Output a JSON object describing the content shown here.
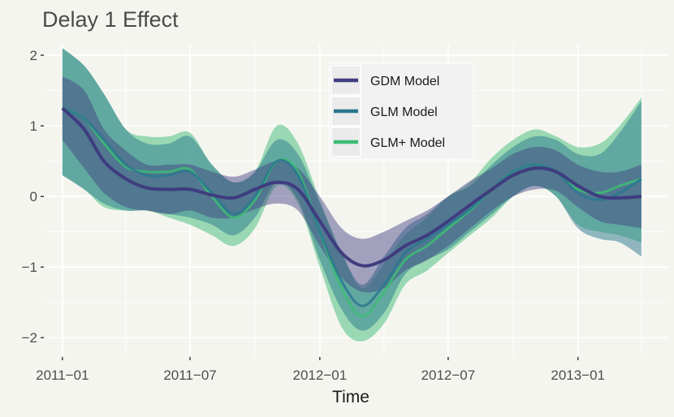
{
  "chart_data": {
    "type": "area",
    "title": "Delay 1 Effect",
    "xlabel": "Time",
    "ylabel": "",
    "x_ticks": [
      "2011-01",
      "2011-07",
      "2012-01",
      "2012-07",
      "2013-01"
    ],
    "y_ticks": [
      "2",
      "1",
      "0",
      "-1",
      "-2"
    ],
    "xlim": [
      "2010-12-08",
      "2013-05-08"
    ],
    "ylim": [
      -2.25,
      2.15
    ],
    "grid": true,
    "legend_position": "top-center",
    "x": [
      "2011-01-01",
      "2011-02-01",
      "2011-03-01",
      "2011-04-01",
      "2011-05-01",
      "2011-06-01",
      "2011-07-01",
      "2011-08-01",
      "2011-09-01",
      "2011-10-01",
      "2011-11-01",
      "2011-12-01",
      "2012-01-01",
      "2012-02-01",
      "2012-03-01",
      "2012-04-01",
      "2012-05-01",
      "2012-06-01",
      "2012-07-01",
      "2012-08-01",
      "2012-09-01",
      "2012-10-01",
      "2012-11-01",
      "2012-12-01",
      "2013-01-01",
      "2013-02-01",
      "2013-03-01",
      "2013-04-01"
    ],
    "series": [
      {
        "name": "GDM Model",
        "color": "#3f3c7f",
        "values": [
          1.25,
          0.95,
          0.5,
          0.25,
          0.12,
          0.1,
          0.1,
          0.02,
          -0.02,
          0.1,
          0.2,
          0.1,
          -0.35,
          -0.8,
          -0.98,
          -0.9,
          -0.7,
          -0.55,
          -0.35,
          -0.12,
          0.1,
          0.3,
          0.4,
          0.35,
          0.15,
          0.0,
          -0.02,
          0.0
        ],
        "lower": [
          0.8,
          0.4,
          0.05,
          -0.15,
          -0.2,
          -0.25,
          -0.2,
          -0.3,
          -0.3,
          -0.18,
          -0.1,
          -0.2,
          -0.7,
          -1.15,
          -1.35,
          -1.3,
          -1.05,
          -0.9,
          -0.7,
          -0.45,
          -0.2,
          0.0,
          0.1,
          0.08,
          -0.15,
          -0.35,
          -0.4,
          -0.45
        ],
        "upper": [
          1.7,
          1.5,
          0.95,
          0.65,
          0.45,
          0.45,
          0.45,
          0.35,
          0.28,
          0.38,
          0.5,
          0.4,
          0.0,
          -0.45,
          -0.6,
          -0.5,
          -0.35,
          -0.2,
          0.0,
          0.22,
          0.4,
          0.6,
          0.7,
          0.65,
          0.45,
          0.35,
          0.35,
          0.45
        ]
      },
      {
        "name": "GLM Model",
        "color": "#2a788e",
        "values": [
          1.25,
          1.1,
          0.8,
          0.45,
          0.3,
          0.3,
          0.35,
          0.05,
          -0.25,
          0.0,
          0.5,
          0.3,
          -0.5,
          -1.2,
          -1.55,
          -1.25,
          -0.8,
          -0.6,
          -0.4,
          -0.18,
          0.1,
          0.35,
          0.45,
          0.35,
          0.05,
          -0.05,
          0.05,
          0.25
        ],
        "lower": [
          0.3,
          0.1,
          -0.1,
          -0.2,
          -0.2,
          -0.25,
          -0.3,
          -0.4,
          -0.55,
          -0.3,
          0.2,
          -0.05,
          -0.9,
          -1.6,
          -1.9,
          -1.65,
          -1.1,
          -0.9,
          -0.75,
          -0.5,
          -0.25,
          0.0,
          0.15,
          0.0,
          -0.45,
          -0.6,
          -0.65,
          -0.85
        ],
        "upper": [
          2.1,
          1.85,
          1.45,
          0.95,
          0.75,
          0.75,
          0.85,
          0.45,
          0.2,
          0.35,
          0.8,
          0.6,
          -0.1,
          -0.8,
          -1.25,
          -0.85,
          -0.45,
          -0.25,
          0.0,
          0.15,
          0.45,
          0.7,
          0.85,
          0.8,
          0.6,
          0.6,
          0.9,
          1.35
        ]
      },
      {
        "name": "GLM+ Model",
        "color": "#3dbc74",
        "values": [
          1.25,
          1.1,
          0.75,
          0.42,
          0.35,
          0.35,
          0.38,
          0.0,
          -0.3,
          -0.05,
          0.5,
          0.35,
          -0.5,
          -1.3,
          -1.7,
          -1.35,
          -0.9,
          -0.7,
          -0.45,
          -0.2,
          0.1,
          0.35,
          0.45,
          0.35,
          0.1,
          0.05,
          0.15,
          0.25
        ],
        "lower": [
          0.3,
          0.1,
          -0.15,
          -0.2,
          -0.2,
          -0.3,
          -0.4,
          -0.55,
          -0.7,
          -0.45,
          0.15,
          -0.1,
          -1.0,
          -1.85,
          -2.05,
          -1.8,
          -1.25,
          -1.05,
          -0.8,
          -0.55,
          -0.3,
          0.0,
          0.15,
          0.0,
          -0.4,
          -0.5,
          -0.55,
          -0.65
        ],
        "upper": [
          2.1,
          1.85,
          1.45,
          0.95,
          0.85,
          0.85,
          0.9,
          0.45,
          0.2,
          0.35,
          1.0,
          0.75,
          -0.05,
          -0.8,
          -1.3,
          -0.95,
          -0.55,
          -0.3,
          0.0,
          0.2,
          0.55,
          0.8,
          0.95,
          0.85,
          0.7,
          0.75,
          1.0,
          1.4
        ]
      }
    ]
  }
}
